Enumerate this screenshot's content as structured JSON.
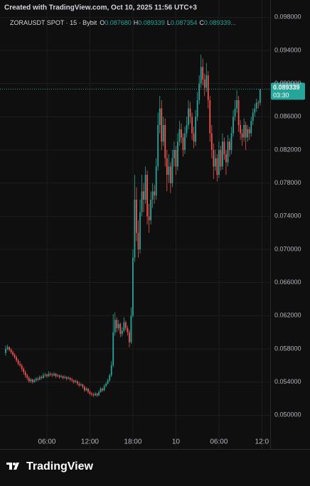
{
  "header": {
    "created": "Created with TradingView.com, Oct 10, 2025 11:56 UTC+3",
    "symbol": "ZORAUSDT SPOT · 15 · Bybit",
    "ohlc": [
      {
        "key": "O",
        "label": "0.087680"
      },
      {
        "key": "H",
        "label": "0.089339"
      },
      {
        "key": "L",
        "label": "0.087354"
      },
      {
        "key": "C",
        "label": "0.089339..."
      }
    ]
  },
  "footer": {
    "brand": "TradingView"
  },
  "chart_data": {
    "type": "candlestick",
    "up_color": "#26a69a",
    "down_color": "#ef5350",
    "grid": true,
    "ylim": [
      0.046,
      0.1
    ],
    "yticks": [
      {
        "value": 0.098,
        "label": "0.098000"
      },
      {
        "value": 0.094,
        "label": "0.094000"
      },
      {
        "value": 0.09,
        "label": "0.090000"
      },
      {
        "value": 0.086,
        "label": "0.086000"
      },
      {
        "value": 0.082,
        "label": "0.082000"
      },
      {
        "value": 0.078,
        "label": "0.078000"
      },
      {
        "value": 0.074,
        "label": "0.074000"
      },
      {
        "value": 0.07,
        "label": "0.070000"
      },
      {
        "value": 0.066,
        "label": "0.066000"
      },
      {
        "value": 0.062,
        "label": "0.062000"
      },
      {
        "value": 0.058,
        "label": "0.058000"
      },
      {
        "value": 0.054,
        "label": "0.054000"
      },
      {
        "value": 0.05,
        "label": "0.050000"
      }
    ],
    "xticks": [
      {
        "value": 23,
        "label": "06:00"
      },
      {
        "value": 47,
        "label": "12:00"
      },
      {
        "value": 71,
        "label": "18:00"
      },
      {
        "value": 95,
        "label": "10"
      },
      {
        "value": 119,
        "label": "06:00"
      },
      {
        "value": 143,
        "label": "12:0"
      }
    ],
    "last_price": {
      "value": 0.089339,
      "label": "0.089339",
      "countdown": "03:30"
    },
    "candles": [
      [
        0.0575,
        0.0584,
        0.0572,
        0.058
      ],
      [
        0.058,
        0.0585,
        0.0578,
        0.0582
      ],
      [
        0.0582,
        0.0583,
        0.0577,
        0.0579
      ],
      [
        0.0579,
        0.0581,
        0.0574,
        0.0576
      ],
      [
        0.0576,
        0.0578,
        0.0571,
        0.0573
      ],
      [
        0.0573,
        0.0575,
        0.0568,
        0.057
      ],
      [
        0.057,
        0.0572,
        0.0564,
        0.0566
      ],
      [
        0.0566,
        0.0568,
        0.056,
        0.0562
      ],
      [
        0.0562,
        0.0565,
        0.0558,
        0.056
      ],
      [
        0.056,
        0.0562,
        0.0553,
        0.0556
      ],
      [
        0.0556,
        0.0558,
        0.0549,
        0.0552
      ],
      [
        0.0552,
        0.0554,
        0.0545,
        0.0548
      ],
      [
        0.0548,
        0.055,
        0.0542,
        0.0545
      ],
      [
        0.0545,
        0.0547,
        0.0539,
        0.0541
      ],
      [
        0.0541,
        0.0545,
        0.0539,
        0.0543
      ],
      [
        0.0543,
        0.0544,
        0.0538,
        0.054
      ],
      [
        0.054,
        0.0544,
        0.0539,
        0.0542
      ],
      [
        0.0542,
        0.0546,
        0.054,
        0.0544
      ],
      [
        0.0544,
        0.0546,
        0.0541,
        0.0543
      ],
      [
        0.0543,
        0.0548,
        0.0542,
        0.0546
      ],
      [
        0.0546,
        0.0548,
        0.0543,
        0.0545
      ],
      [
        0.0545,
        0.0551,
        0.0544,
        0.0548
      ],
      [
        0.0548,
        0.0551,
        0.0546,
        0.0549
      ],
      [
        0.0549,
        0.055,
        0.0545,
        0.0547
      ],
      [
        0.0547,
        0.0553,
        0.0546,
        0.055
      ],
      [
        0.055,
        0.0552,
        0.0547,
        0.0549
      ],
      [
        0.0549,
        0.0551,
        0.0546,
        0.0548
      ],
      [
        0.0548,
        0.0552,
        0.0547,
        0.055
      ],
      [
        0.055,
        0.0551,
        0.0545,
        0.0547
      ],
      [
        0.0547,
        0.055,
        0.0546,
        0.0548
      ],
      [
        0.0548,
        0.0549,
        0.0544,
        0.0546
      ],
      [
        0.0546,
        0.0549,
        0.0545,
        0.0547
      ],
      [
        0.0547,
        0.0548,
        0.0543,
        0.0545
      ],
      [
        0.0545,
        0.0548,
        0.0544,
        0.0546
      ],
      [
        0.0546,
        0.0547,
        0.0542,
        0.0544
      ],
      [
        0.0544,
        0.0547,
        0.0543,
        0.0545
      ],
      [
        0.0545,
        0.0546,
        0.0541,
        0.0543
      ],
      [
        0.0543,
        0.0545,
        0.054,
        0.0542
      ],
      [
        0.0542,
        0.0543,
        0.0538,
        0.054
      ],
      [
        0.054,
        0.0543,
        0.0539,
        0.0541
      ],
      [
        0.0541,
        0.0542,
        0.0536,
        0.0538
      ],
      [
        0.0538,
        0.054,
        0.0534,
        0.0536
      ],
      [
        0.0536,
        0.0539,
        0.0535,
        0.0537
      ],
      [
        0.0537,
        0.0538,
        0.0532,
        0.0534
      ],
      [
        0.0534,
        0.0536,
        0.0528,
        0.053
      ],
      [
        0.053,
        0.0534,
        0.0529,
        0.0532
      ],
      [
        0.0532,
        0.0533,
        0.0526,
        0.0528
      ],
      [
        0.0528,
        0.053,
        0.0524,
        0.0526
      ],
      [
        0.0526,
        0.0528,
        0.0523,
        0.0525
      ],
      [
        0.0525,
        0.0527,
        0.0522,
        0.0524
      ],
      [
        0.0524,
        0.0528,
        0.0523,
        0.0526
      ],
      [
        0.0526,
        0.0527,
        0.0522,
        0.0524
      ],
      [
        0.0524,
        0.053,
        0.0523,
        0.0528
      ],
      [
        0.0528,
        0.0534,
        0.0527,
        0.0532
      ],
      [
        0.0532,
        0.0533,
        0.0528,
        0.053
      ],
      [
        0.053,
        0.0537,
        0.0529,
        0.0535
      ],
      [
        0.0535,
        0.054,
        0.0534,
        0.0538
      ],
      [
        0.0538,
        0.0544,
        0.0537,
        0.0542
      ],
      [
        0.0542,
        0.055,
        0.054,
        0.0548
      ],
      [
        0.0548,
        0.0565,
        0.0546,
        0.056
      ],
      [
        0.056,
        0.0622,
        0.0558,
        0.06
      ],
      [
        0.06,
        0.0624,
        0.0596,
        0.0615
      ],
      [
        0.0615,
        0.0618,
        0.06,
        0.0605
      ],
      [
        0.0605,
        0.0615,
        0.0602,
        0.061
      ],
      [
        0.061,
        0.0612,
        0.0594,
        0.0598
      ],
      [
        0.0598,
        0.0606,
        0.0595,
        0.0602
      ],
      [
        0.0602,
        0.0618,
        0.06,
        0.0612
      ],
      [
        0.0612,
        0.0614,
        0.0602,
        0.0605
      ],
      [
        0.0605,
        0.0608,
        0.0596,
        0.06
      ],
      [
        0.06,
        0.0603,
        0.0582,
        0.0588
      ],
      [
        0.0588,
        0.063,
        0.0586,
        0.062
      ],
      [
        0.062,
        0.07,
        0.0618,
        0.069
      ],
      [
        0.069,
        0.079,
        0.0685,
        0.076
      ],
      [
        0.076,
        0.0775,
        0.071,
        0.072
      ],
      [
        0.072,
        0.0735,
        0.069,
        0.07
      ],
      [
        0.07,
        0.076,
        0.0695,
        0.0745
      ],
      [
        0.0745,
        0.079,
        0.074,
        0.077
      ],
      [
        0.077,
        0.078,
        0.0745,
        0.076
      ],
      [
        0.076,
        0.08,
        0.0755,
        0.079
      ],
      [
        0.079,
        0.0795,
        0.073,
        0.074
      ],
      [
        0.074,
        0.0755,
        0.072,
        0.0735
      ],
      [
        0.0735,
        0.077,
        0.073,
        0.076
      ],
      [
        0.076,
        0.078,
        0.075,
        0.077
      ],
      [
        0.077,
        0.0778,
        0.0755,
        0.0765
      ],
      [
        0.0765,
        0.081,
        0.076,
        0.08
      ],
      [
        0.08,
        0.0865,
        0.0795,
        0.085
      ],
      [
        0.085,
        0.0885,
        0.084,
        0.087
      ],
      [
        0.087,
        0.088,
        0.082,
        0.083
      ],
      [
        0.083,
        0.086,
        0.0825,
        0.085
      ],
      [
        0.085,
        0.0858,
        0.08,
        0.081
      ],
      [
        0.081,
        0.082,
        0.077,
        0.079
      ],
      [
        0.079,
        0.0815,
        0.078,
        0.08
      ],
      [
        0.08,
        0.0805,
        0.0768,
        0.078
      ],
      [
        0.078,
        0.082,
        0.0775,
        0.081
      ],
      [
        0.081,
        0.083,
        0.08,
        0.082
      ],
      [
        0.082,
        0.0825,
        0.079,
        0.08
      ],
      [
        0.08,
        0.084,
        0.0795,
        0.083
      ],
      [
        0.083,
        0.0855,
        0.0825,
        0.0845
      ],
      [
        0.0845,
        0.0852,
        0.0828,
        0.0835
      ],
      [
        0.0835,
        0.084,
        0.0812,
        0.082
      ],
      [
        0.082,
        0.0848,
        0.0815,
        0.084
      ],
      [
        0.084,
        0.086,
        0.0835,
        0.085
      ],
      [
        0.085,
        0.088,
        0.0845,
        0.087
      ],
      [
        0.087,
        0.0878,
        0.0852,
        0.086
      ],
      [
        0.086,
        0.0865,
        0.0832,
        0.084
      ],
      [
        0.084,
        0.0848,
        0.0822,
        0.083
      ],
      [
        0.083,
        0.0868,
        0.0825,
        0.086
      ],
      [
        0.086,
        0.089,
        0.0855,
        0.088
      ],
      [
        0.088,
        0.091,
        0.0875,
        0.09
      ],
      [
        0.09,
        0.0935,
        0.0895,
        0.092
      ],
      [
        0.092,
        0.093,
        0.0898,
        0.0905
      ],
      [
        0.0905,
        0.0912,
        0.0885,
        0.0895
      ],
      [
        0.0895,
        0.0925,
        0.089,
        0.091
      ],
      [
        0.091,
        0.0915,
        0.087,
        0.088
      ],
      [
        0.088,
        0.0885,
        0.083,
        0.084
      ],
      [
        0.084,
        0.085,
        0.081,
        0.082
      ],
      [
        0.082,
        0.0828,
        0.0785,
        0.08
      ],
      [
        0.08,
        0.082,
        0.0795,
        0.081
      ],
      [
        0.081,
        0.0815,
        0.0782,
        0.079
      ],
      [
        0.079,
        0.083,
        0.0786,
        0.082
      ],
      [
        0.082,
        0.0825,
        0.0795,
        0.08
      ],
      [
        0.08,
        0.084,
        0.0796,
        0.083
      ],
      [
        0.083,
        0.0835,
        0.0808,
        0.0815
      ],
      [
        0.0815,
        0.082,
        0.079,
        0.0805
      ],
      [
        0.0805,
        0.0838,
        0.08,
        0.083
      ],
      [
        0.083,
        0.0834,
        0.0812,
        0.082
      ],
      [
        0.082,
        0.0848,
        0.0815,
        0.084
      ],
      [
        0.084,
        0.0868,
        0.0836,
        0.086
      ],
      [
        0.086,
        0.088,
        0.0855,
        0.087
      ],
      [
        0.087,
        0.0892,
        0.0865,
        0.088
      ],
      [
        0.088,
        0.0885,
        0.0842,
        0.085
      ],
      [
        0.085,
        0.0856,
        0.0832,
        0.084
      ],
      [
        0.084,
        0.0845,
        0.0825,
        0.0835
      ],
      [
        0.0835,
        0.0858,
        0.083,
        0.085
      ],
      [
        0.085,
        0.0854,
        0.082,
        0.0835
      ],
      [
        0.0835,
        0.085,
        0.083,
        0.0845
      ],
      [
        0.0845,
        0.0848,
        0.0832,
        0.084
      ],
      [
        0.084,
        0.086,
        0.0836,
        0.0855
      ],
      [
        0.0855,
        0.087,
        0.085,
        0.0865
      ],
      [
        0.0865,
        0.0876,
        0.086,
        0.087
      ],
      [
        0.087,
        0.0882,
        0.0866,
        0.0877
      ],
      [
        0.0877,
        0.088,
        0.087,
        0.08768
      ],
      [
        0.08768,
        0.089339,
        0.087354,
        0.089339
      ]
    ]
  }
}
